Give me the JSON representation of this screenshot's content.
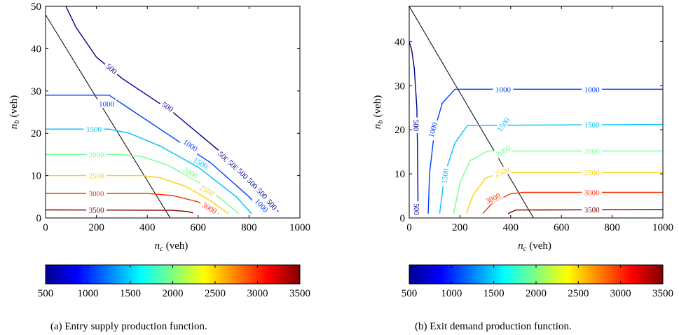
{
  "colors": {
    "500": "#00008f",
    "1000": "#0040ff",
    "1500": "#00c0ff",
    "2000": "#70ff90",
    "2500": "#ffd000",
    "3000": "#ff3000",
    "3500": "#800000",
    "boundary": "#000000",
    "frame": "#000000"
  },
  "colorbar": {
    "stops": [
      "#00008f",
      "#0000ff",
      "#0080ff",
      "#00ffff",
      "#80ff80",
      "#ffff00",
      "#ff8000",
      "#ff0000",
      "#800000"
    ],
    "ticks": [
      "500",
      "1000",
      "1500",
      "2000",
      "2500",
      "3000",
      "3500"
    ],
    "range": [
      500,
      3500
    ]
  },
  "chart_data": [
    {
      "type": "contour",
      "caption": "(a) Entry supply production function.",
      "xlabel_main": "n",
      "xlabel_sub": "c",
      "xlabel_unit": " (veh)",
      "ylabel_main": "n",
      "ylabel_sub": "b",
      "ylabel_unit": " (veh)",
      "xlim": [
        0,
        1000
      ],
      "ylim": [
        0,
        50
      ],
      "xticks": [
        "0",
        "200",
        "400",
        "600",
        "800",
        "1000"
      ],
      "yticks": [
        "0",
        "10",
        "20",
        "30",
        "40",
        "50"
      ],
      "boundary": [
        [
          0,
          48
        ],
        [
          490,
          0
        ]
      ],
      "contours": [
        {
          "level": 500,
          "points": [
            [
              80,
              50
            ],
            [
              120,
              45
            ],
            [
              200,
              38
            ],
            [
              300,
              33
            ],
            [
              400,
              29
            ],
            [
              500,
              25
            ],
            [
              600,
              20
            ],
            [
              700,
              15
            ],
            [
              800,
              9
            ],
            [
              880,
              4
            ],
            [
              915,
              1.5
            ]
          ],
          "labels": [
            {
              "text": "500",
              "at": [
                260,
                35.3
              ]
            },
            {
              "text": "500",
              "at": [
                480,
                26.3
              ]
            },
            {
              "text": "500",
              "at": [
                700,
                14.5
              ]
            },
            {
              "text": "500",
              "at": [
                738,
                12.5
              ]
            },
            {
              "text": "500",
              "at": [
                776,
                10.5
              ]
            },
            {
              "text": "500",
              "at": [
                814,
                8.2
              ]
            },
            {
              "text": "500",
              "at": [
                852,
                5.8
              ]
            },
            {
              "text": "500",
              "at": [
                890,
                3.2
              ]
            }
          ]
        },
        {
          "level": 1000,
          "points": [
            [
              0,
              29
            ],
            [
              200,
              29
            ],
            [
              250,
              29
            ],
            [
              350,
              25
            ],
            [
              500,
              19
            ],
            [
              650,
              13
            ],
            [
              800,
              5
            ],
            [
              860,
              1
            ]
          ],
          "labels": [
            {
              "text": "1000",
              "at": [
                240,
                27
              ]
            },
            {
              "text": "1000",
              "at": [
                570,
                17.2
              ]
            },
            {
              "text": "1000",
              "at": [
                850,
                3
              ]
            }
          ]
        },
        {
          "level": 1500,
          "points": [
            [
              0,
              21
            ],
            [
              250,
              21
            ],
            [
              330,
              20
            ],
            [
              450,
              17
            ],
            [
              600,
              12
            ],
            [
              750,
              5
            ],
            [
              810,
              1
            ]
          ],
          "labels": [
            {
              "text": "1500",
              "at": [
                190,
                21
              ]
            },
            {
              "text": "1500",
              "at": [
                610,
                13
              ]
            }
          ]
        },
        {
          "level": 2000,
          "points": [
            [
              0,
              15
            ],
            [
              300,
              15
            ],
            [
              380,
              14.5
            ],
            [
              480,
              12.5
            ],
            [
              600,
              8.5
            ],
            [
              700,
              4
            ],
            [
              760,
              1
            ]
          ],
          "labels": [
            {
              "text": "2000",
              "at": [
                200,
                15
              ]
            },
            {
              "text": "2000",
              "at": [
                570,
                10.7
              ]
            }
          ]
        },
        {
          "level": 2500,
          "points": [
            [
              0,
              10
            ],
            [
              380,
              10
            ],
            [
              450,
              9.5
            ],
            [
              550,
              7.5
            ],
            [
              650,
              4
            ],
            [
              720,
              1
            ]
          ],
          "labels": [
            {
              "text": "2500",
              "at": [
                200,
                10
              ]
            },
            {
              "text": "2500",
              "at": [
                635,
                6.5
              ]
            }
          ]
        },
        {
          "level": 3000,
          "points": [
            [
              0,
              5.8
            ],
            [
              400,
              5.8
            ],
            [
              500,
              5.3
            ],
            [
              600,
              3.8
            ],
            [
              680,
              1
            ]
          ],
          "labels": [
            {
              "text": "3000",
              "at": [
                200,
                5.8
              ]
            },
            {
              "text": "3000",
              "at": [
                645,
                2.4
              ]
            }
          ]
        },
        {
          "level": 3500,
          "points": [
            [
              0,
              1.9
            ],
            [
              500,
              1.8
            ],
            [
              560,
              1.5
            ],
            [
              580,
              1.2
            ]
          ],
          "labels": [
            {
              "text": "3500",
              "at": [
                200,
                1.9
              ]
            }
          ]
        }
      ]
    },
    {
      "type": "contour",
      "caption": "(b) Exit demand production function.",
      "xlabel_main": "n",
      "xlabel_sub": "c",
      "xlabel_unit": " (veh)",
      "ylabel_main": "n",
      "ylabel_sub": "b",
      "ylabel_unit": " (veh)",
      "xlim": [
        0,
        1000
      ],
      "ylim": [
        0,
        48
      ],
      "xticks": [
        "0",
        "200",
        "400",
        "600",
        "800",
        "1000"
      ],
      "yticks": [
        "0",
        "10",
        "20",
        "30",
        "40"
      ],
      "boundary": [
        [
          0,
          48
        ],
        [
          490,
          0
        ]
      ],
      "contours": [
        {
          "level": 500,
          "points": [
            [
              0,
              40
            ],
            [
              10,
              38
            ],
            [
              20,
              34
            ],
            [
              30,
              25
            ],
            [
              33,
              15
            ],
            [
              35,
              1
            ]
          ],
          "labels": [
            {
              "text": "500",
              "at": [
                28,
                21
              ]
            },
            {
              "text": "500",
              "at": [
                30,
                2
              ]
            }
          ]
        },
        {
          "level": 1000,
          "points": [
            [
              75,
              1
            ],
            [
              80,
              10
            ],
            [
              100,
              20
            ],
            [
              130,
              26
            ],
            [
              180,
              29.2
            ],
            [
              1000,
              29.2
            ]
          ],
          "labels": [
            {
              "text": "1000",
              "at": [
                93,
                20
              ]
            },
            {
              "text": "1000",
              "at": [
                370,
                29.2
              ]
            },
            {
              "text": "1000",
              "at": [
                720,
                29.2
              ]
            }
          ]
        },
        {
          "level": 1500,
          "points": [
            [
              120,
              1
            ],
            [
              140,
              10
            ],
            [
              180,
              17
            ],
            [
              230,
              21
            ],
            [
              1000,
              21.2
            ]
          ],
          "labels": [
            {
              "text": "1500",
              "at": [
                140,
                9.5
              ]
            },
            {
              "text": "1500",
              "at": [
                370,
                21.2
              ]
            },
            {
              "text": "1500",
              "at": [
                720,
                21.2
              ]
            }
          ]
        },
        {
          "level": 2000,
          "points": [
            [
              175,
              1
            ],
            [
              200,
              8
            ],
            [
              240,
              13
            ],
            [
              310,
              15.2
            ],
            [
              1000,
              15.2
            ]
          ],
          "labels": [
            {
              "text": "2000",
              "at": [
                370,
                15.2
              ]
            },
            {
              "text": "2000",
              "at": [
                720,
                15.2
              ]
            }
          ]
        },
        {
          "level": 2500,
          "points": [
            [
              225,
              1
            ],
            [
              250,
              5
            ],
            [
              300,
              9
            ],
            [
              360,
              10.3
            ],
            [
              1000,
              10.3
            ]
          ],
          "labels": [
            {
              "text": "2500",
              "at": [
                365,
                10.5
              ]
            },
            {
              "text": "2500",
              "at": [
                720,
                10.3
              ]
            }
          ]
        },
        {
          "level": 3000,
          "points": [
            [
              290,
              1
            ],
            [
              330,
              3.5
            ],
            [
              400,
              5.5
            ],
            [
              450,
              5.8
            ],
            [
              1000,
              5.8
            ]
          ],
          "labels": [
            {
              "text": "3000",
              "at": [
                330,
                4.5
              ]
            },
            {
              "text": "3000",
              "at": [
                720,
                5.8
              ]
            }
          ]
        },
        {
          "level": 3500,
          "points": [
            [
              390,
              1
            ],
            [
              420,
              1.8
            ],
            [
              1000,
              1.9
            ]
          ],
          "labels": [
            {
              "text": "3500",
              "at": [
                720,
                1.9
              ]
            }
          ]
        }
      ]
    }
  ]
}
